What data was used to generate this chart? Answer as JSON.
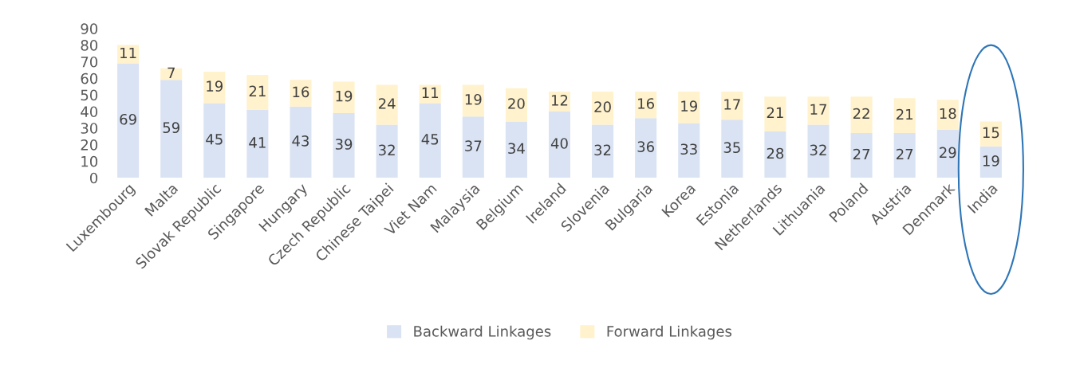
{
  "chart_data": {
    "type": "bar",
    "stacked": true,
    "categories": [
      "Luxembourg",
      "Malta",
      "Slovak Republic",
      "Singapore",
      "Hungary",
      "Czech Republic",
      "Chinese Taipei",
      "Viet Nam",
      "Malaysia",
      "Belgium",
      "Ireland",
      "Slovenia",
      "Bulgaria",
      "Korea",
      "Estonia",
      "Netherlands",
      "Lithuania",
      "Poland",
      "Austria",
      "Denmark",
      "India"
    ],
    "series": [
      {
        "name": "Backward Linkages",
        "color": "#dae3f3",
        "values": [
          69,
          59,
          45,
          41,
          43,
          39,
          32,
          45,
          37,
          34,
          40,
          32,
          36,
          33,
          35,
          28,
          32,
          27,
          27,
          29,
          19
        ]
      },
      {
        "name": "Forward Linkages",
        "color": "#fff2cc",
        "values": [
          11,
          7,
          19,
          21,
          16,
          19,
          24,
          11,
          19,
          20,
          12,
          20,
          16,
          19,
          17,
          21,
          17,
          22,
          21,
          18,
          15
        ]
      }
    ],
    "ylim": [
      0,
      90
    ],
    "yticks": [
      0,
      10,
      20,
      30,
      40,
      50,
      60,
      70,
      80,
      90
    ],
    "grid": false,
    "legend": "bottom",
    "data_labels": true
  }
}
